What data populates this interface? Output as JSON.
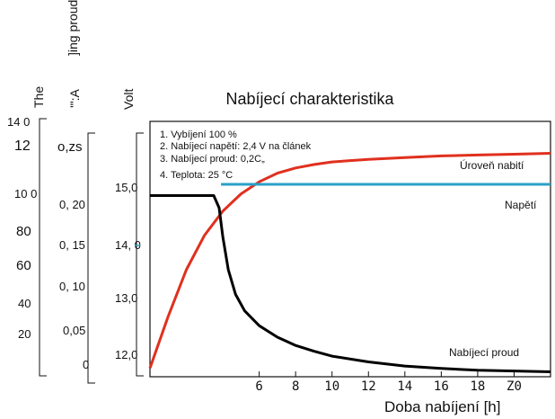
{
  "chart_data": {
    "type": "line",
    "title": "Nabíjecí charakteristika",
    "xlabel": "Doba nabíjení [h]",
    "x_ticks": [
      "6",
      "8",
      "10",
      "12",
      "14",
      "16",
      "18",
      "Z0"
    ],
    "xlim": [
      0,
      22
    ],
    "axes": [
      {
        "label": "The",
        "ticks": [
          "14 0",
          "12",
          "10 0",
          "80",
          "60",
          "40",
          "20"
        ]
      },
      {
        "label": "]ing proud",
        "sublabel": "'\":A",
        "ticks": [
          "o,zs",
          "0, 20",
          "0, 15",
          "0, 10",
          "0,05",
          "0"
        ]
      },
      {
        "label": "Volt",
        "ticks": [
          "15,0",
          "14, 0",
          "13,0",
          "12,0"
        ],
        "ylim": [
          11.75,
          15.4
        ]
      }
    ],
    "notes": [
      "1. Vybíjení 100 %",
      "2. Nabíjecí napětí: 2,4 V na článek",
      "3. Nabíjecí proud: 0,2C„",
      "4. Teplota: 25 °C"
    ],
    "series": [
      {
        "name": "Úroveň nabití",
        "color": "#e0301e",
        "axis": "The",
        "ylim": [
          0,
          148
        ],
        "x": [
          0,
          1,
          2,
          3,
          4,
          5,
          6,
          7,
          8,
          9,
          10,
          12,
          14,
          16,
          18,
          20,
          22
        ],
        "y": [
          5,
          35,
          62,
          82,
          96,
          106,
          113,
          118,
          121,
          123,
          124.5,
          126,
          127,
          128,
          128.5,
          129,
          129.5
        ]
      },
      {
        "name": "Napětí",
        "color": "#2aa0c8",
        "axis": "Volt",
        "x": [
          3.9,
          22
        ],
        "y": [
          14.5,
          14.5
        ]
      },
      {
        "name": "Nabíjecí proud",
        "color": "#000000",
        "axis": "]ing proud",
        "ylim": [
          0,
          0.31
        ],
        "x": [
          0,
          3.5,
          3.8,
          4.0,
          4.3,
          4.7,
          5.2,
          6,
          7,
          8,
          9,
          10,
          12,
          14,
          16,
          18,
          20,
          22
        ],
        "y": [
          0.22,
          0.22,
          0.205,
          0.17,
          0.13,
          0.1,
          0.08,
          0.062,
          0.048,
          0.038,
          0.031,
          0.025,
          0.018,
          0.013,
          0.01,
          0.008,
          0.007,
          0.006
        ]
      }
    ]
  }
}
